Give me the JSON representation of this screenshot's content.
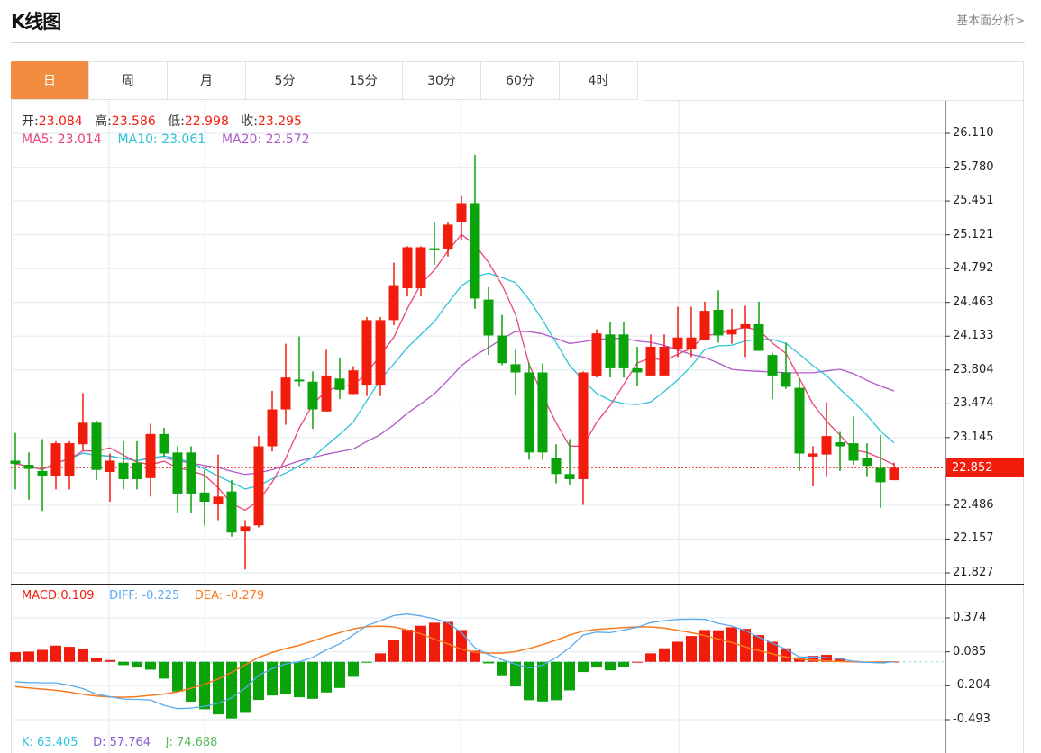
{
  "header": {
    "title": "K线图",
    "link": "基本面分析>"
  },
  "tabs": [
    {
      "label": "日",
      "active": true
    },
    {
      "label": "周"
    },
    {
      "label": "月"
    },
    {
      "label": "5分"
    },
    {
      "label": "15分"
    },
    {
      "label": "30分"
    },
    {
      "label": "60分"
    },
    {
      "label": "4时"
    }
  ],
  "ohlc_info": {
    "open_label": "开:",
    "open": "23.084",
    "high_label": "高:",
    "high": "23.586",
    "low_label": "低:",
    "low": "22.998",
    "close_label": "收:",
    "close": "23.295"
  },
  "ma_info": {
    "ma5": "MA5: 23.014",
    "ma10": "MA10: 23.061",
    "ma20": "MA20: 22.572"
  },
  "macd_info": {
    "macd": "MACD:0.109",
    "diff": "DIFF: -0.225",
    "dea": "DEA: -0.279"
  },
  "kdj_info": {
    "k": "K: 63.405",
    "d": "D: 57.764",
    "j": "J: 74.688"
  },
  "colors": {
    "up": "#f21c0c",
    "down": "#0aa30a",
    "ma5": "#e8457a",
    "ma10": "#2bc4d8",
    "ma20": "#b05ac8",
    "diff": "#58aaf0",
    "dea": "#f97a1f",
    "accent": "#f28c41"
  },
  "chart_data": [
    {
      "type": "candlestick",
      "title": "K线图",
      "ylim": [
        21.827,
        26.11
      ],
      "y_ticks": [
        "26.110",
        "25.780",
        "25.451",
        "25.121",
        "24.792",
        "24.463",
        "24.133",
        "23.804",
        "23.474",
        "23.145",
        "22.486",
        "22.157",
        "21.827"
      ],
      "last_price": "22.852",
      "ma_periods": [
        5,
        10,
        20
      ],
      "candles": [
        [
          22.92,
          23.19,
          22.64,
          22.89
        ],
        [
          22.88,
          23.0,
          22.54,
          22.84
        ],
        [
          22.82,
          23.13,
          22.43,
          22.77
        ],
        [
          22.77,
          23.11,
          22.64,
          23.09
        ],
        [
          22.77,
          23.11,
          22.64,
          23.09
        ],
        [
          23.08,
          23.58,
          23.02,
          23.29
        ],
        [
          23.29,
          23.31,
          22.73,
          22.83
        ],
        [
          22.81,
          22.99,
          22.52,
          22.92
        ],
        [
          22.9,
          23.11,
          22.64,
          22.74
        ],
        [
          22.9,
          23.11,
          22.64,
          22.74
        ],
        [
          22.75,
          23.28,
          22.57,
          23.18
        ],
        [
          23.18,
          23.24,
          22.96,
          22.99
        ],
        [
          23.0,
          23.06,
          22.41,
          22.6
        ],
        [
          23.0,
          23.06,
          22.41,
          22.6
        ],
        [
          22.61,
          22.83,
          22.29,
          22.52
        ],
        [
          22.5,
          22.98,
          22.34,
          22.57
        ],
        [
          22.62,
          22.73,
          22.18,
          22.22
        ],
        [
          22.23,
          22.34,
          21.86,
          22.28
        ],
        [
          22.29,
          23.16,
          22.27,
          23.06
        ],
        [
          23.06,
          23.6,
          23.01,
          23.42
        ],
        [
          23.42,
          24.06,
          23.27,
          23.73
        ],
        [
          23.71,
          24.13,
          23.64,
          23.7
        ],
        [
          23.69,
          23.79,
          23.23,
          23.42
        ],
        [
          23.4,
          24.0,
          23.4,
          23.75
        ],
        [
          23.72,
          23.92,
          23.52,
          23.61
        ],
        [
          23.57,
          23.84,
          23.57,
          23.8
        ],
        [
          23.66,
          24.32,
          23.55,
          24.29
        ],
        [
          23.66,
          24.32,
          23.55,
          24.29
        ],
        [
          24.29,
          24.85,
          24.24,
          24.63
        ],
        [
          24.6,
          25.01,
          24.52,
          25.0
        ],
        [
          24.6,
          25.01,
          24.52,
          25.0
        ],
        [
          24.99,
          25.24,
          24.83,
          24.97
        ],
        [
          24.98,
          25.25,
          24.91,
          25.22
        ],
        [
          25.25,
          25.5,
          25.07,
          25.43
        ],
        [
          25.43,
          25.9,
          24.4,
          24.5
        ],
        [
          24.49,
          24.61,
          23.95,
          24.14
        ],
        [
          24.14,
          24.34,
          23.85,
          23.87
        ],
        [
          23.86,
          24.0,
          23.56,
          23.78
        ],
        [
          23.78,
          23.87,
          22.93,
          23.0
        ],
        [
          23.78,
          23.87,
          22.93,
          23.0
        ],
        [
          22.95,
          23.08,
          22.7,
          22.79
        ],
        [
          22.79,
          23.13,
          22.68,
          22.74
        ],
        [
          22.74,
          23.79,
          22.49,
          23.78
        ],
        [
          23.74,
          24.2,
          23.73,
          24.16
        ],
        [
          24.15,
          24.27,
          23.73,
          23.82
        ],
        [
          24.15,
          24.27,
          23.73,
          23.82
        ],
        [
          23.82,
          24.03,
          23.65,
          23.78
        ],
        [
          23.75,
          24.15,
          23.75,
          24.03
        ],
        [
          23.75,
          24.15,
          23.75,
          24.03
        ],
        [
          24.01,
          24.42,
          23.93,
          24.12
        ],
        [
          24.01,
          24.42,
          23.93,
          24.12
        ],
        [
          24.1,
          24.47,
          24.1,
          24.38
        ],
        [
          24.39,
          24.58,
          24.07,
          24.14
        ],
        [
          24.15,
          24.4,
          24.06,
          24.2
        ],
        [
          24.21,
          24.43,
          23.93,
          24.25
        ],
        [
          24.25,
          24.47,
          23.99,
          23.99
        ],
        [
          23.95,
          23.97,
          23.52,
          23.75
        ],
        [
          23.78,
          24.07,
          23.62,
          23.64
        ],
        [
          23.63,
          23.72,
          22.82,
          22.99
        ],
        [
          22.96,
          23.06,
          22.67,
          22.99
        ],
        [
          22.98,
          23.49,
          22.76,
          23.16
        ],
        [
          23.1,
          23.2,
          22.82,
          23.06
        ],
        [
          23.09,
          23.35,
          22.88,
          22.92
        ],
        [
          22.95,
          23.09,
          22.76,
          22.87
        ],
        [
          22.85,
          23.17,
          22.46,
          22.71
        ],
        [
          22.73,
          22.9,
          22.73,
          22.85
        ]
      ]
    },
    {
      "type": "bar+line",
      "title": "MACD",
      "ylim": [
        -0.493,
        0.374
      ],
      "y_ticks": [
        "0.374",
        "0.085",
        "-0.204",
        "-0.493"
      ],
      "macd": [
        0.082,
        0.087,
        0.102,
        0.138,
        0.128,
        0.107,
        0.033,
        0.015,
        -0.028,
        -0.049,
        -0.067,
        -0.143,
        -0.253,
        -0.34,
        -0.404,
        -0.448,
        -0.483,
        -0.435,
        -0.325,
        -0.287,
        -0.274,
        -0.302,
        -0.315,
        -0.261,
        -0.223,
        -0.128,
        -0.005,
        0.072,
        0.184,
        0.274,
        0.307,
        0.333,
        0.34,
        0.271,
        0.095,
        -0.013,
        -0.115,
        -0.21,
        -0.327,
        -0.338,
        -0.327,
        -0.243,
        -0.087,
        -0.049,
        -0.072,
        -0.043,
        0.0,
        0.072,
        0.115,
        0.171,
        0.22,
        0.271,
        0.269,
        0.294,
        0.281,
        0.228,
        0.171,
        0.115,
        0.038,
        0.051,
        0.059,
        0.031,
        0.008,
        0.0,
        -0.013,
        0.002
      ],
      "diff": [
        -0.171,
        -0.177,
        -0.179,
        -0.179,
        -0.2,
        -0.228,
        -0.276,
        -0.297,
        -0.317,
        -0.32,
        -0.325,
        -0.371,
        -0.399,
        -0.394,
        -0.379,
        -0.353,
        -0.307,
        -0.225,
        -0.115,
        -0.059,
        -0.018,
        0.0,
        0.038,
        0.102,
        0.153,
        0.23,
        0.307,
        0.35,
        0.394,
        0.407,
        0.391,
        0.366,
        0.333,
        0.248,
        0.12,
        0.061,
        0.018,
        -0.02,
        -0.051,
        -0.028,
        0.036,
        0.12,
        0.228,
        0.253,
        0.248,
        0.271,
        0.294,
        0.333,
        0.35,
        0.361,
        0.363,
        0.361,
        0.327,
        0.304,
        0.266,
        0.21,
        0.159,
        0.107,
        0.041,
        0.041,
        0.036,
        0.026,
        0.005,
        -0.005,
        -0.008,
        0.0
      ],
      "dea": [
        -0.212,
        -0.223,
        -0.233,
        -0.243,
        -0.258,
        -0.276,
        -0.292,
        -0.299,
        -0.302,
        -0.297,
        -0.286,
        -0.274,
        -0.256,
        -0.225,
        -0.192,
        -0.146,
        -0.09,
        -0.026,
        0.038,
        0.079,
        0.113,
        0.141,
        0.177,
        0.215,
        0.248,
        0.281,
        0.299,
        0.304,
        0.297,
        0.271,
        0.238,
        0.192,
        0.153,
        0.107,
        0.082,
        0.074,
        0.074,
        0.087,
        0.113,
        0.146,
        0.184,
        0.228,
        0.261,
        0.276,
        0.284,
        0.292,
        0.297,
        0.297,
        0.287,
        0.269,
        0.248,
        0.223,
        0.194,
        0.164,
        0.128,
        0.095,
        0.067,
        0.041,
        0.023,
        0.015,
        0.008,
        0.003,
        0.0,
        -0.003,
        0.0,
        0.0
      ]
    }
  ]
}
